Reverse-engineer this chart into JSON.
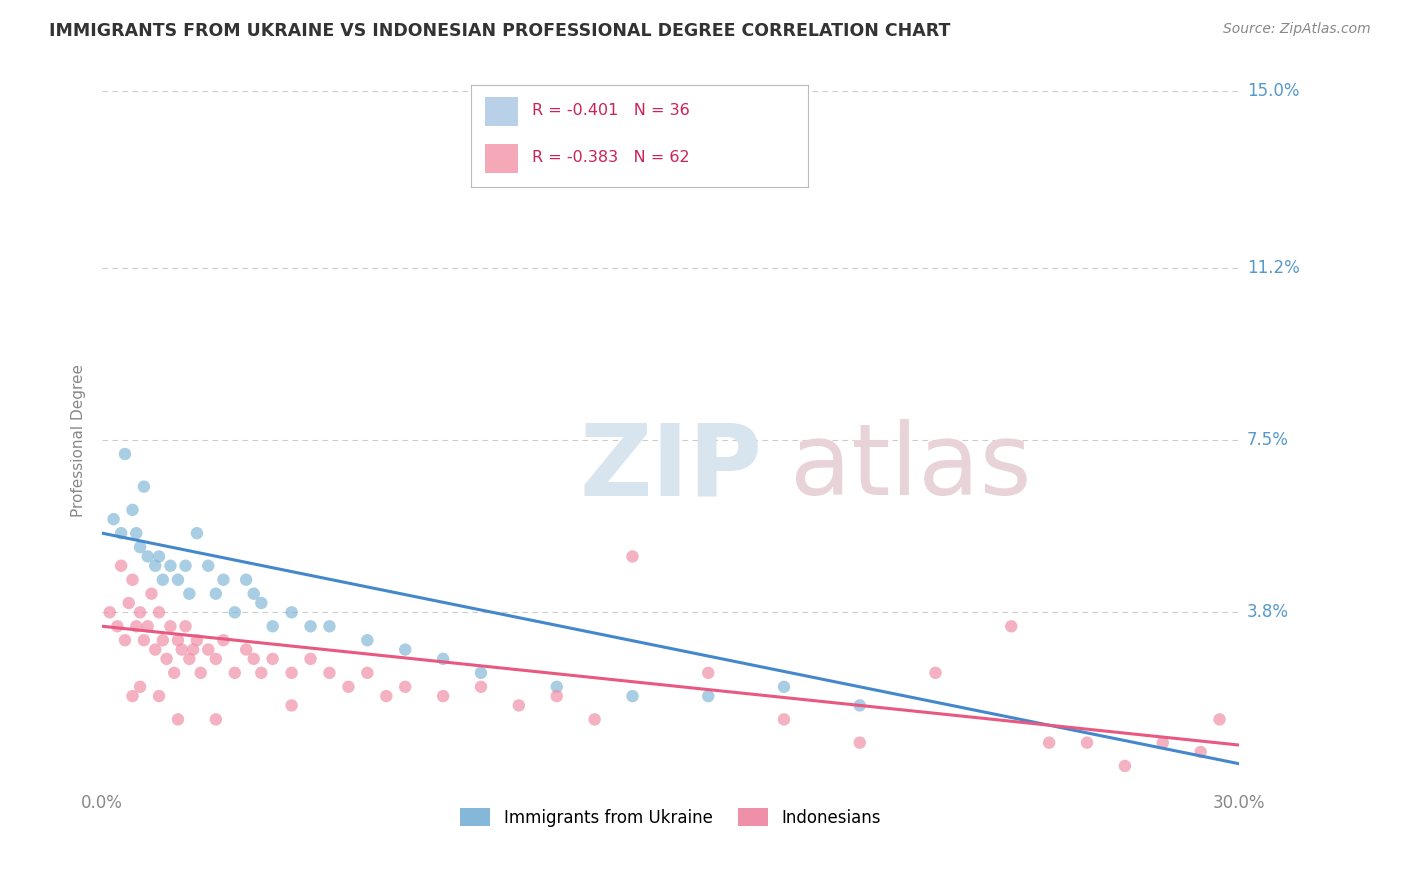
{
  "title": "IMMIGRANTS FROM UKRAINE VS INDONESIAN PROFESSIONAL DEGREE CORRELATION CHART",
  "source": "Source: ZipAtlas.com",
  "ylabel": "Professional Degree",
  "xlim": [
    0.0,
    30.0
  ],
  "ylim": [
    0.0,
    15.0
  ],
  "xtick_labels": [
    "0.0%",
    "30.0%"
  ],
  "yticks": [
    0.0,
    3.8,
    7.5,
    11.2,
    15.0
  ],
  "ytick_labels": [
    "",
    "3.8%",
    "7.5%",
    "11.2%",
    "15.0%"
  ],
  "legend_entries": [
    {
      "label": "R = -0.401   N = 36",
      "color": "#b8d0e8"
    },
    {
      "label": "R = -0.383   N = 62",
      "color": "#f4a8b8"
    }
  ],
  "legend_labels": [
    "Immigrants from Ukraine",
    "Indonesians"
  ],
  "ukraine_color": "#85b8d8",
  "indonesian_color": "#f090a8",
  "ukraine_line_color": "#4488cc",
  "indonesian_line_color": "#e85880",
  "background_color": "#ffffff",
  "grid_color": "#cccccc",
  "title_color": "#333333",
  "axis_color": "#5599cc",
  "ylabel_color": "#888888",
  "xtick_color": "#888888",
  "ukraine_scatter_x": [
    0.3,
    0.5,
    0.6,
    0.8,
    0.9,
    1.0,
    1.1,
    1.2,
    1.4,
    1.5,
    1.6,
    1.8,
    2.0,
    2.2,
    2.3,
    2.5,
    2.8,
    3.0,
    3.2,
    3.5,
    3.8,
    4.0,
    4.2,
    4.5,
    5.0,
    5.5,
    6.0,
    7.0,
    8.0,
    9.0,
    10.0,
    12.0,
    14.0,
    16.0,
    18.0,
    20.0
  ],
  "ukraine_scatter_y": [
    5.8,
    5.5,
    7.2,
    6.0,
    5.5,
    5.2,
    6.5,
    5.0,
    4.8,
    5.0,
    4.5,
    4.8,
    4.5,
    4.8,
    4.2,
    5.5,
    4.8,
    4.2,
    4.5,
    3.8,
    4.5,
    4.2,
    4.0,
    3.5,
    3.8,
    3.5,
    3.5,
    3.2,
    3.0,
    2.8,
    2.5,
    2.2,
    2.0,
    2.0,
    2.2,
    1.8
  ],
  "indonesian_scatter_x": [
    0.2,
    0.4,
    0.5,
    0.6,
    0.7,
    0.8,
    0.9,
    1.0,
    1.1,
    1.2,
    1.3,
    1.4,
    1.5,
    1.6,
    1.7,
    1.8,
    1.9,
    2.0,
    2.1,
    2.2,
    2.3,
    2.4,
    2.5,
    2.6,
    2.8,
    3.0,
    3.2,
    3.5,
    3.8,
    4.0,
    4.2,
    4.5,
    5.0,
    5.5,
    6.0,
    6.5,
    7.0,
    7.5,
    8.0,
    9.0,
    10.0,
    11.0,
    12.0,
    13.0,
    14.0,
    16.0,
    18.0,
    20.0,
    22.0,
    24.0,
    25.0,
    26.0,
    27.0,
    28.0,
    29.0,
    29.5,
    0.8,
    1.0,
    1.5,
    2.0,
    3.0,
    5.0
  ],
  "indonesian_scatter_y": [
    3.8,
    3.5,
    4.8,
    3.2,
    4.0,
    4.5,
    3.5,
    3.8,
    3.2,
    3.5,
    4.2,
    3.0,
    3.8,
    3.2,
    2.8,
    3.5,
    2.5,
    3.2,
    3.0,
    3.5,
    2.8,
    3.0,
    3.2,
    2.5,
    3.0,
    2.8,
    3.2,
    2.5,
    3.0,
    2.8,
    2.5,
    2.8,
    2.5,
    2.8,
    2.5,
    2.2,
    2.5,
    2.0,
    2.2,
    2.0,
    2.2,
    1.8,
    2.0,
    1.5,
    5.0,
    2.5,
    1.5,
    1.0,
    2.5,
    3.5,
    1.0,
    1.0,
    0.5,
    1.0,
    0.8,
    1.5,
    2.0,
    2.2,
    2.0,
    1.5,
    1.5,
    1.8
  ]
}
